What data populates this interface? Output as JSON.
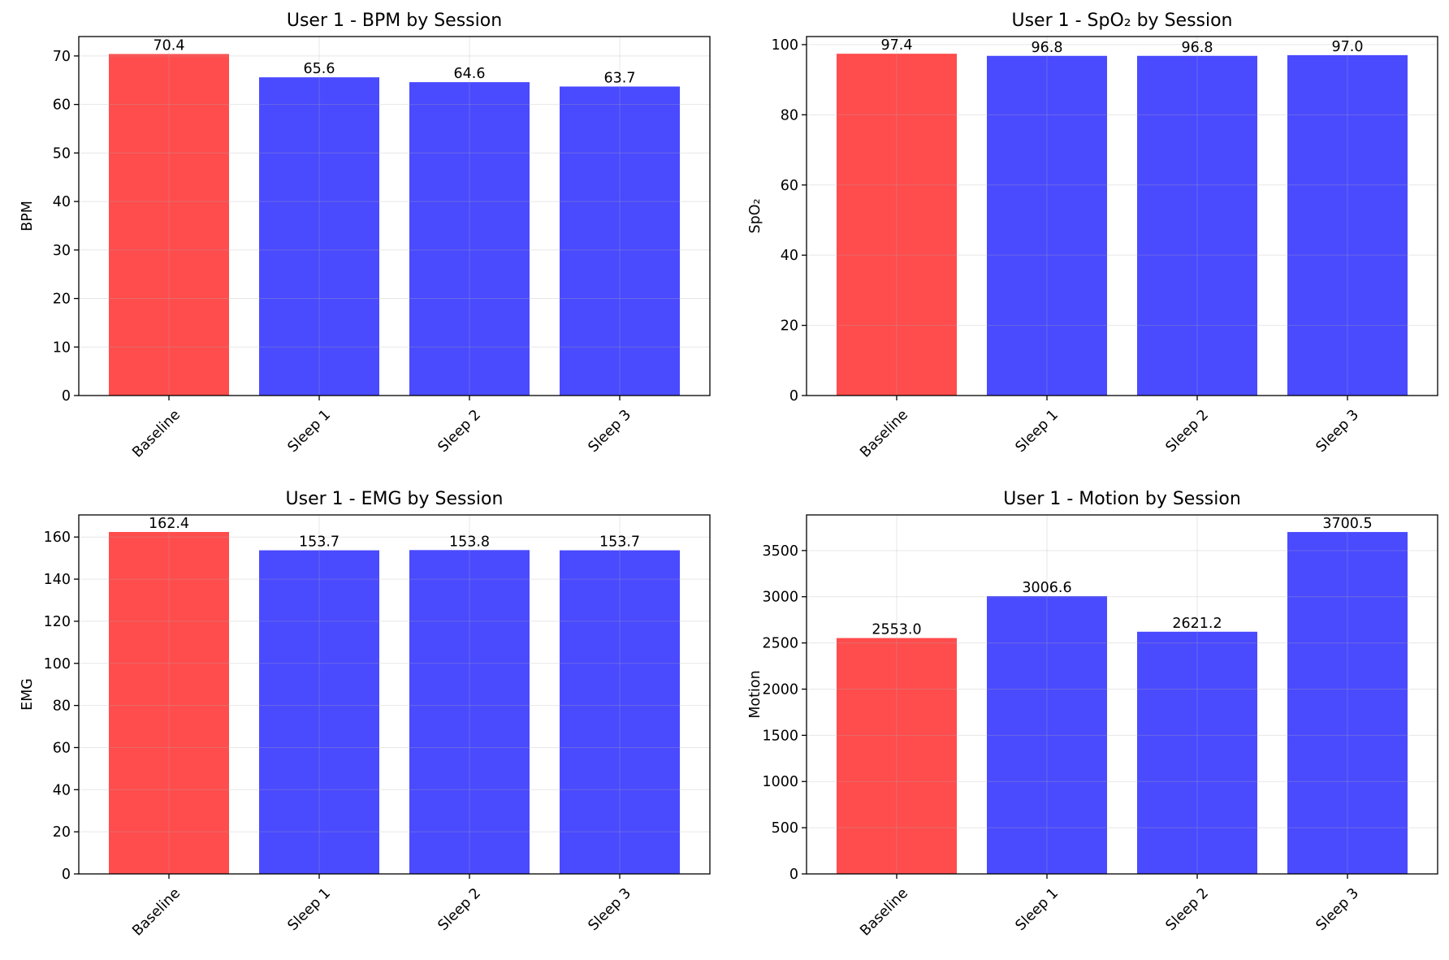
{
  "chart_data": [
    {
      "type": "bar",
      "title": "User 1 - BPM by Session",
      "xlabel": "",
      "ylabel": "BPM",
      "categories": [
        "Baseline",
        "Sleep 1",
        "Sleep 2",
        "Sleep 3"
      ],
      "values": [
        70.4,
        65.6,
        64.6,
        63.7
      ],
      "value_labels": [
        "70.4",
        "65.6",
        "64.6",
        "63.7"
      ],
      "colors": [
        "#ff4c4c",
        "#4a4aff",
        "#4a4aff",
        "#4a4aff"
      ],
      "ylim": [
        0,
        74
      ],
      "yticks": [
        0,
        10,
        20,
        30,
        40,
        50,
        60,
        70
      ],
      "grid": true
    },
    {
      "type": "bar",
      "title": "User 1 - SpO₂ by Session",
      "xlabel": "",
      "ylabel": "SpO₂",
      "categories": [
        "Baseline",
        "Sleep 1",
        "Sleep 2",
        "Sleep 3"
      ],
      "values": [
        97.4,
        96.8,
        96.8,
        97.0
      ],
      "value_labels": [
        "97.4",
        "96.8",
        "96.8",
        "97.0"
      ],
      "colors": [
        "#ff4c4c",
        "#4a4aff",
        "#4a4aff",
        "#4a4aff"
      ],
      "ylim": [
        0,
        102.3
      ],
      "yticks": [
        0,
        20,
        40,
        60,
        80,
        100
      ],
      "grid": true
    },
    {
      "type": "bar",
      "title": "User 1 - EMG by Session",
      "xlabel": "",
      "ylabel": "EMG",
      "categories": [
        "Baseline",
        "Sleep 1",
        "Sleep 2",
        "Sleep 3"
      ],
      "values": [
        162.4,
        153.7,
        153.8,
        153.7
      ],
      "value_labels": [
        "162.4",
        "153.7",
        "153.8",
        "153.7"
      ],
      "colors": [
        "#ff4c4c",
        "#4a4aff",
        "#4a4aff",
        "#4a4aff"
      ],
      "ylim": [
        0,
        170.5
      ],
      "yticks": [
        0,
        20,
        40,
        60,
        80,
        100,
        120,
        140,
        160
      ],
      "grid": true
    },
    {
      "type": "bar",
      "title": "User 1 - Motion by Session",
      "xlabel": "",
      "ylabel": "Motion",
      "categories": [
        "Baseline",
        "Sleep 1",
        "Sleep 2",
        "Sleep 3"
      ],
      "values": [
        2553.0,
        3006.6,
        2621.2,
        3700.5
      ],
      "value_labels": [
        "2553.0",
        "3006.6",
        "2621.2",
        "3700.5"
      ],
      "colors": [
        "#ff4c4c",
        "#4a4aff",
        "#4a4aff",
        "#4a4aff"
      ],
      "ylim": [
        0,
        3885.5
      ],
      "yticks": [
        0,
        500,
        1000,
        1500,
        2000,
        2500,
        3000,
        3500
      ],
      "grid": true
    }
  ]
}
